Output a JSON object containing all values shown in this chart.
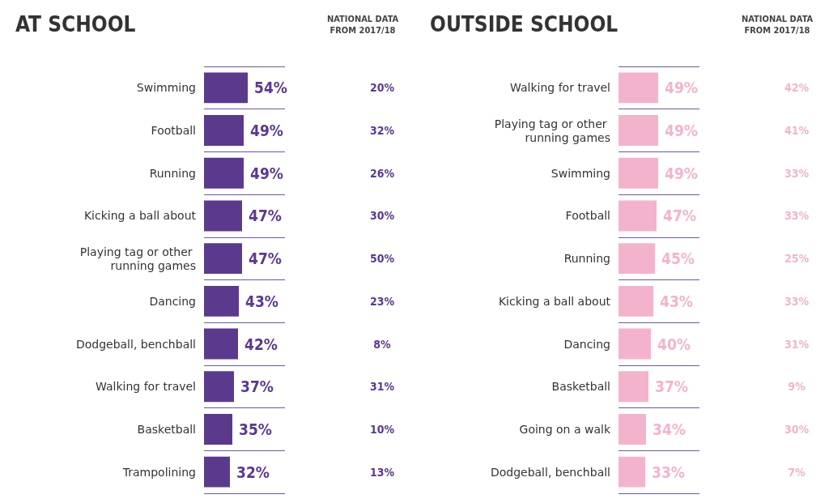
{
  "chart_data": [
    {
      "type": "bar",
      "orientation": "horizontal",
      "title": "AT SCHOOL",
      "categories": [
        "Swimming",
        "Football",
        "Running",
        "Kicking a ball about",
        "Playing tag or other running games",
        "Dancing",
        "Dodgeball, benchball",
        "Walking for travel",
        "Basketball",
        "Trampolining"
      ],
      "values": [
        54,
        49,
        49,
        47,
        47,
        43,
        42,
        37,
        35,
        32
      ],
      "color": "#5b3a8e",
      "value_labels": [
        "54%",
        "49%",
        "49%",
        "47%",
        "47%",
        "43%",
        "42%",
        "37%",
        "35%",
        "32%"
      ],
      "xlim": [
        0,
        100
      ],
      "tick_labels": "y",
      "grid": "y",
      "annotations": [
        "NATIONAL DATA FROM 2017/18",
        "20%",
        "32%",
        "26%",
        "30%",
        "50%",
        "23%",
        "8%",
        "31%",
        "10%",
        "13%"
      ]
    },
    {
      "type": "bar",
      "orientation": "horizontal",
      "title": "OUTSIDE SCHOOL",
      "categories": [
        "Walking for travel",
        "Playing tag or other running games",
        "Swimming",
        "Football",
        "Running",
        "Kicking a ball about",
        "Dancing",
        "Basketball",
        "Going on a walk",
        "Dodgeball, benchball"
      ],
      "values": [
        49,
        49,
        49,
        47,
        45,
        43,
        40,
        37,
        34,
        33
      ],
      "color": "#f4b3cd",
      "value_labels": [
        "49%",
        "49%",
        "49%",
        "47%",
        "45%",
        "43%",
        "40%",
        "37%",
        "34%",
        "33%"
      ],
      "xlim": [
        0,
        100
      ],
      "tick_labels": "y",
      "grid": "y",
      "annotations": [
        "NATIONAL DATA FROM 2017/18",
        "42%",
        "41%",
        "33%",
        "33%",
        "25%",
        "33%",
        "31%",
        "9%",
        "30%",
        "7%"
      ]
    }
  ]
}
